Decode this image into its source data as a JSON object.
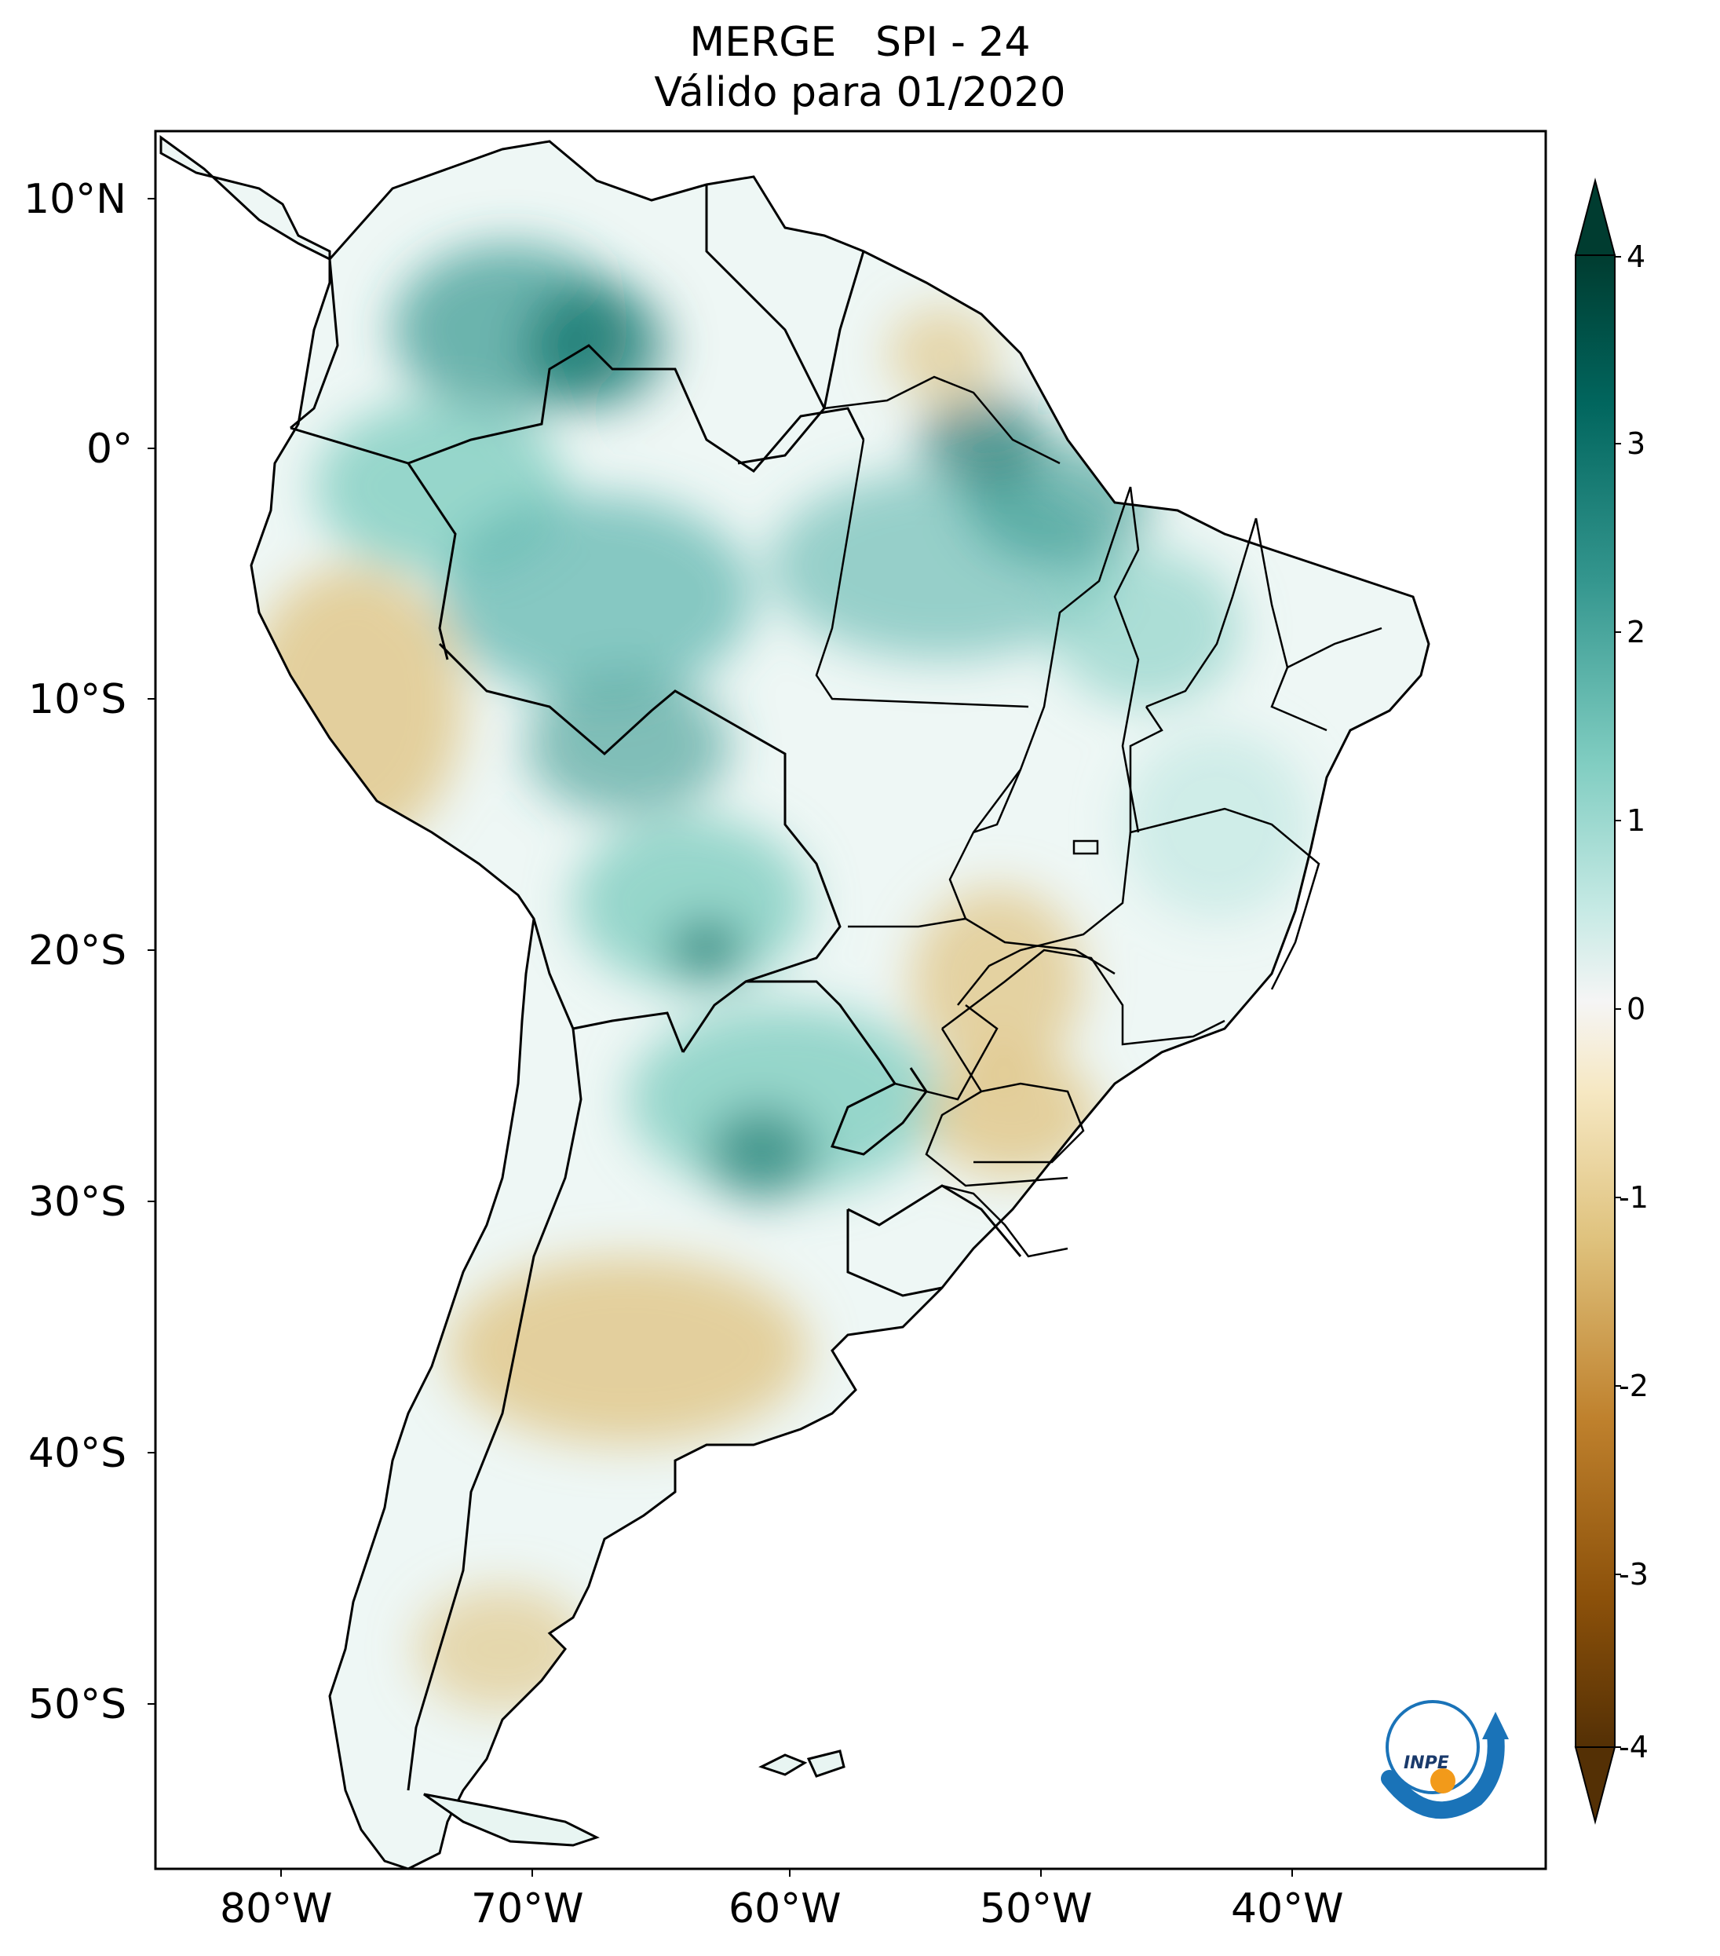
{
  "title_line1": "MERGE   SPI - 24",
  "title_line2": "Válido para 01/2020",
  "map": {
    "region": "South America",
    "lon_range": [
      -85,
      -29
    ],
    "lat_range": [
      -56,
      13
    ],
    "lat_ticks": [
      "10°N",
      "0°",
      "10°S",
      "20°S",
      "30°S",
      "40°S",
      "50°S"
    ],
    "lon_ticks": [
      "80°W",
      "70°W",
      "60°W",
      "50°W",
      "40°W"
    ],
    "coastline_color": "#000000",
    "colormap": "BrBG"
  },
  "colorbar": {
    "min": -4,
    "max": 4,
    "labels": [
      "4",
      "3",
      "2",
      "1",
      "0",
      "-1",
      "-2",
      "-3",
      "-4"
    ],
    "colors": [
      "#003c30",
      "#01665e",
      "#35978f",
      "#80cdc1",
      "#c7eae5",
      "#f5f5f5",
      "#f6e8c3",
      "#dfc27d",
      "#bf812d",
      "#8c510a",
      "#543005"
    ]
  },
  "logo": {
    "text": "INPE",
    "arrow_color": "#1a73b8",
    "dot_color": "#f29a1a"
  }
}
